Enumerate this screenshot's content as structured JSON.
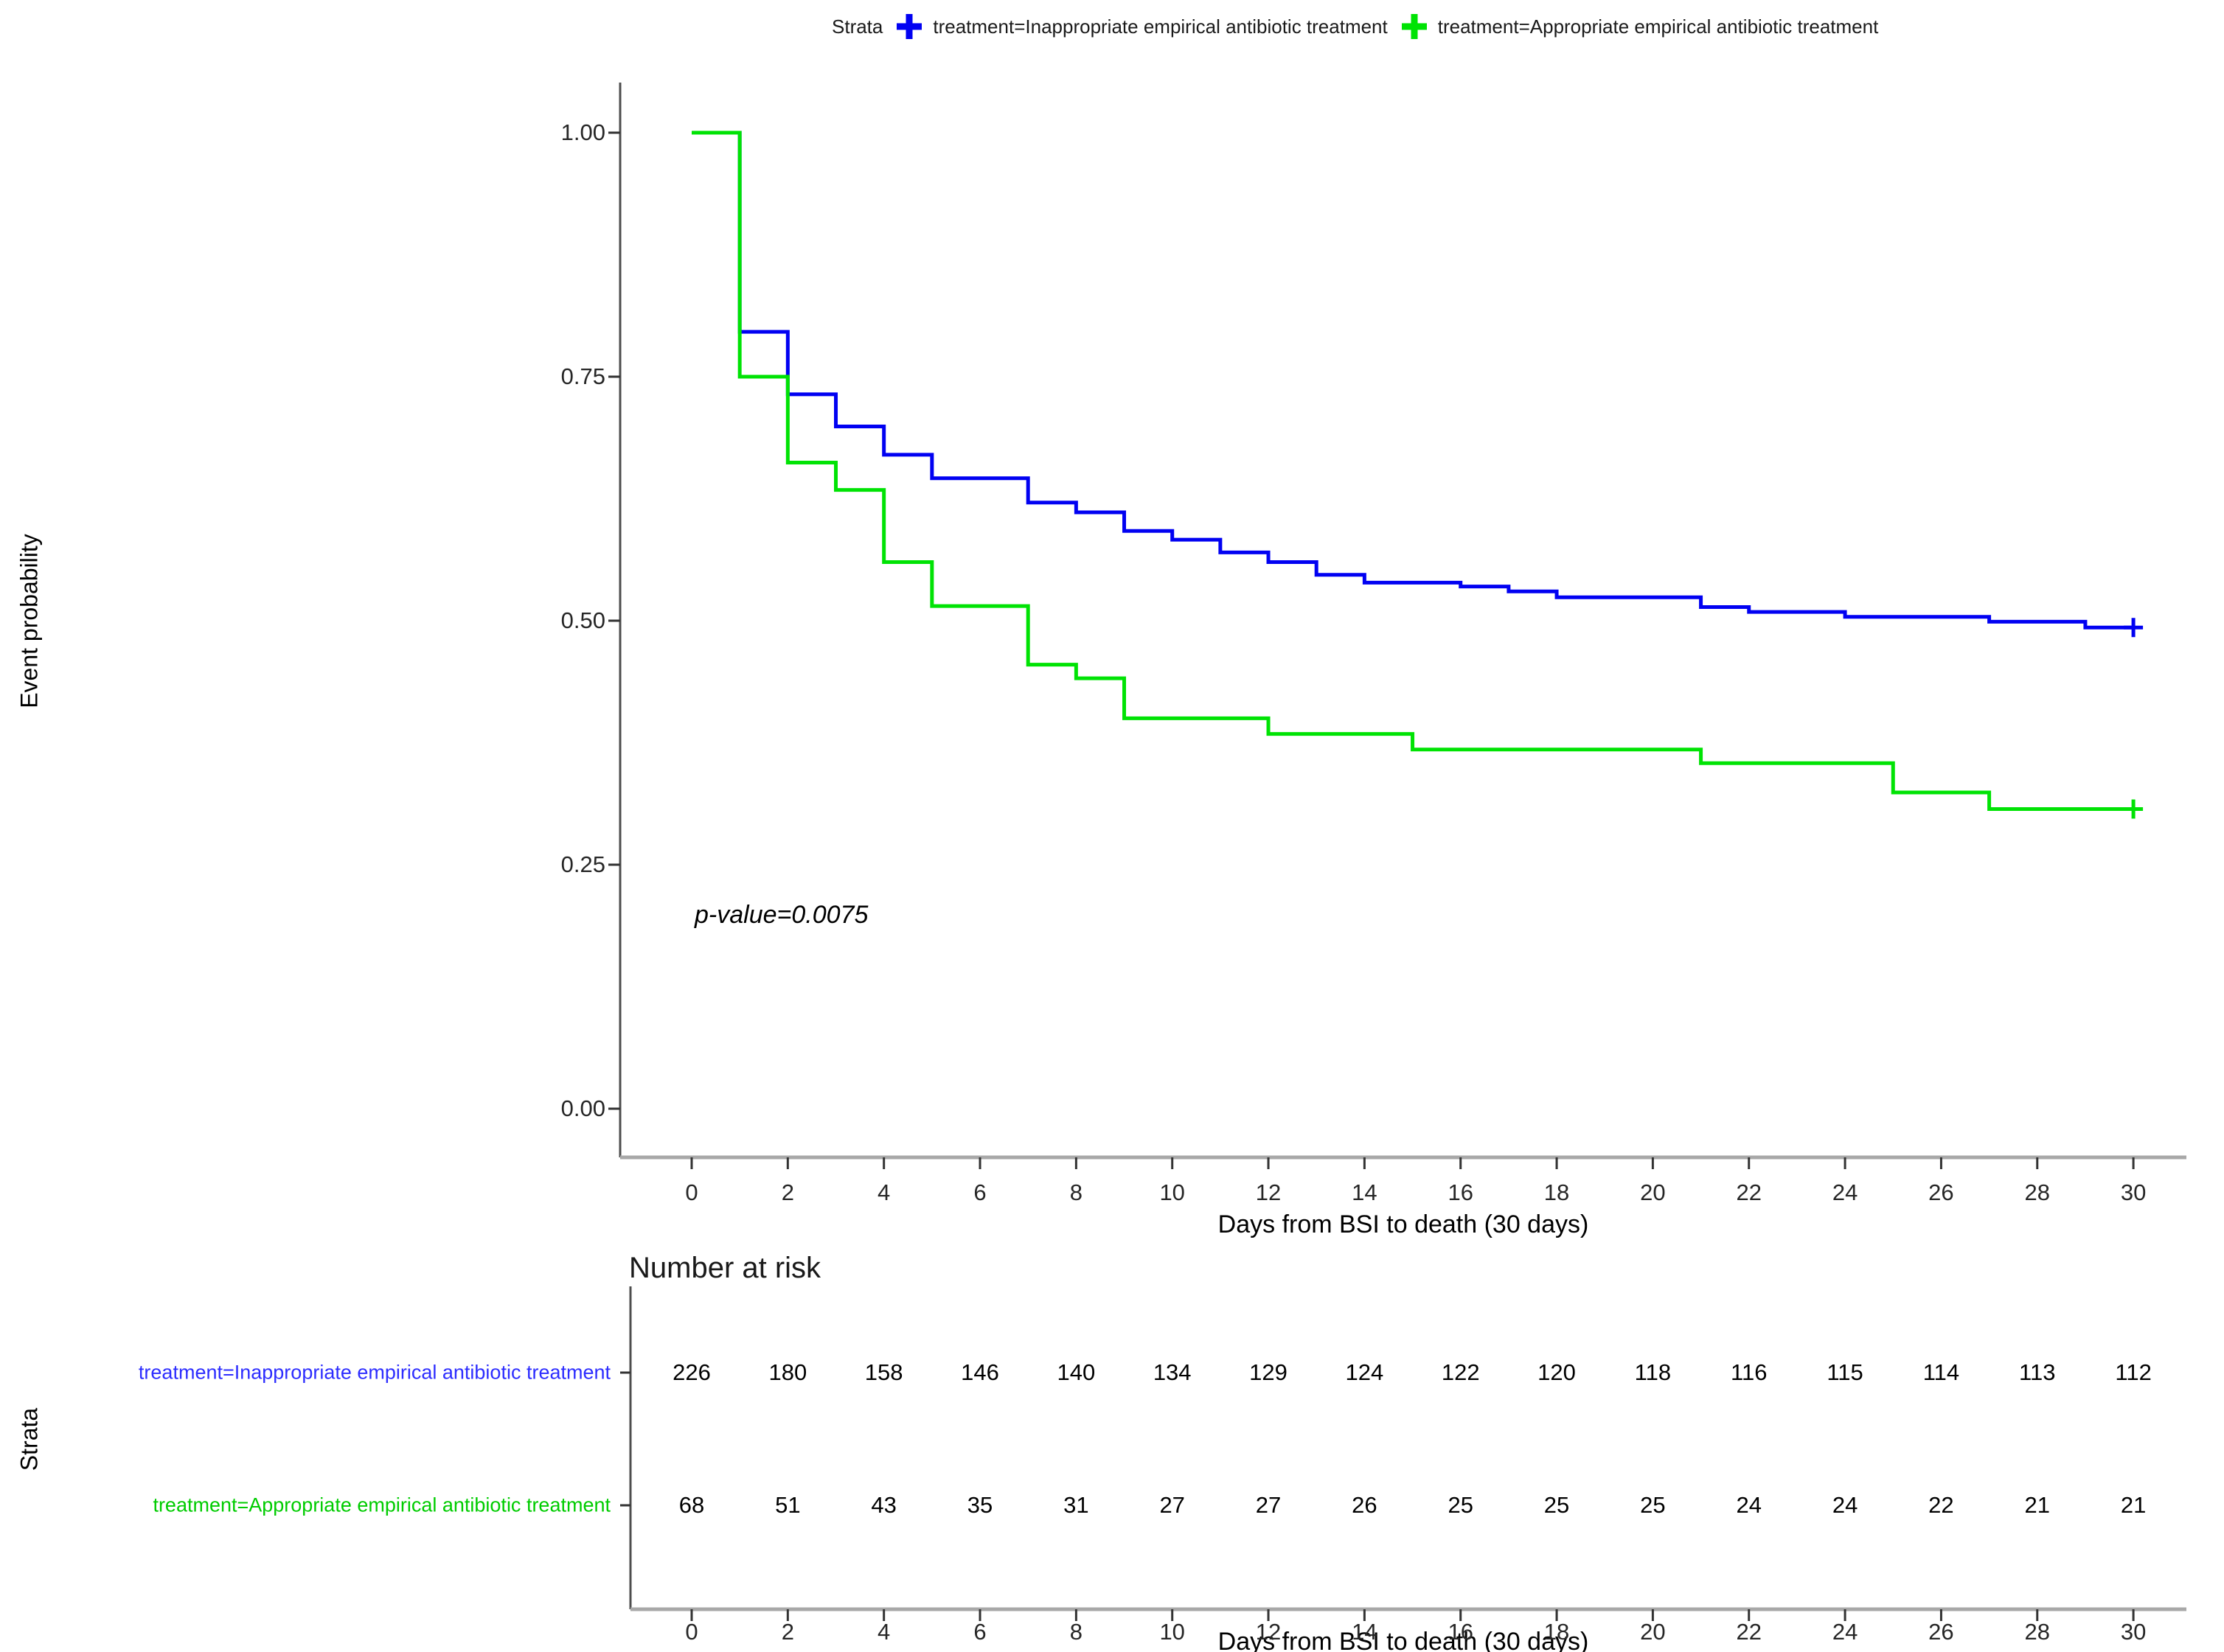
{
  "legend": {
    "title": "Strata",
    "items": [
      {
        "label": "treatment=Inappropriate empirical antibiotic treatment",
        "color": "#0101F2"
      },
      {
        "label": "treatment=Appropriate empirical antibiotic treatment",
        "color": "#00E304"
      }
    ]
  },
  "plot": {
    "ylabel": "Event probability",
    "xlabel": "Days from BSI to death (30 days)",
    "pvalue": "p-value=0.0075"
  },
  "risk_table": {
    "title": "Number at risk",
    "ylabel": "Strata",
    "xlabel": "Days from BSI to death (30 days)",
    "rows": [
      {
        "label": "treatment=Inappropriate empirical antibiotic treatment",
        "color": "#2d2dff",
        "counts": [
          226,
          180,
          158,
          146,
          140,
          134,
          129,
          124,
          122,
          120,
          118,
          116,
          115,
          114,
          113,
          112
        ]
      },
      {
        "label": "treatment=Appropriate empirical antibiotic treatment",
        "color": "#00cc00",
        "counts": [
          68,
          51,
          43,
          35,
          31,
          27,
          27,
          26,
          25,
          25,
          25,
          24,
          24,
          22,
          21,
          21
        ]
      }
    ]
  },
  "chart_data": {
    "type": "line",
    "subtype": "kaplan-meier-step-curve",
    "title": "",
    "xlabel": "Days from BSI to death (30 days)",
    "ylabel": "Event probability",
    "xlim": [
      0,
      30
    ],
    "ylim": [
      0.0,
      1.0
    ],
    "xticks": [
      0,
      2,
      4,
      6,
      8,
      10,
      12,
      14,
      16,
      18,
      20,
      22,
      24,
      26,
      28,
      30
    ],
    "ytick_labels": [
      "1.00",
      "0.75",
      "0.50",
      "0.25",
      "0.00"
    ],
    "ytick_values": [
      1.0,
      0.75,
      0.5,
      0.25,
      0.0
    ],
    "grid": false,
    "legend_position": "top",
    "annotation": "p-value=0.0075",
    "series": [
      {
        "name": "treatment=Inappropriate empirical antibiotic treatment",
        "color": "#0101F2",
        "censored_at_end": true,
        "steps": [
          [
            0,
            1.0
          ],
          [
            1,
            0.796
          ],
          [
            2,
            0.732
          ],
          [
            3,
            0.699
          ],
          [
            4,
            0.67
          ],
          [
            5,
            0.646
          ],
          [
            7,
            0.621
          ],
          [
            8,
            0.611
          ],
          [
            9,
            0.592
          ],
          [
            10,
            0.583
          ],
          [
            11,
            0.57
          ],
          [
            12,
            0.56
          ],
          [
            13,
            0.547
          ],
          [
            14,
            0.539
          ],
          [
            16,
            0.535
          ],
          [
            17,
            0.53
          ],
          [
            18,
            0.524
          ],
          [
            21,
            0.514
          ],
          [
            22,
            0.509
          ],
          [
            24,
            0.504
          ],
          [
            27,
            0.499
          ],
          [
            29,
            0.493
          ],
          [
            30,
            0.493
          ]
        ]
      },
      {
        "name": "treatment=Appropriate empirical antibiotic treatment",
        "color": "#00E304",
        "censored_at_end": true,
        "steps": [
          [
            0,
            1.0
          ],
          [
            1,
            0.75
          ],
          [
            2,
            0.662
          ],
          [
            3,
            0.634
          ],
          [
            4,
            0.56
          ],
          [
            5,
            0.515
          ],
          [
            7,
            0.455
          ],
          [
            8,
            0.441
          ],
          [
            9,
            0.4
          ],
          [
            12,
            0.384
          ],
          [
            15,
            0.368
          ],
          [
            21,
            0.354
          ],
          [
            25,
            0.324
          ],
          [
            27,
            0.307
          ],
          [
            30,
            0.307
          ]
        ]
      }
    ],
    "number_at_risk_days": [
      0,
      2,
      4,
      6,
      8,
      10,
      12,
      14,
      16,
      18,
      20,
      22,
      24,
      26,
      28,
      30
    ]
  }
}
